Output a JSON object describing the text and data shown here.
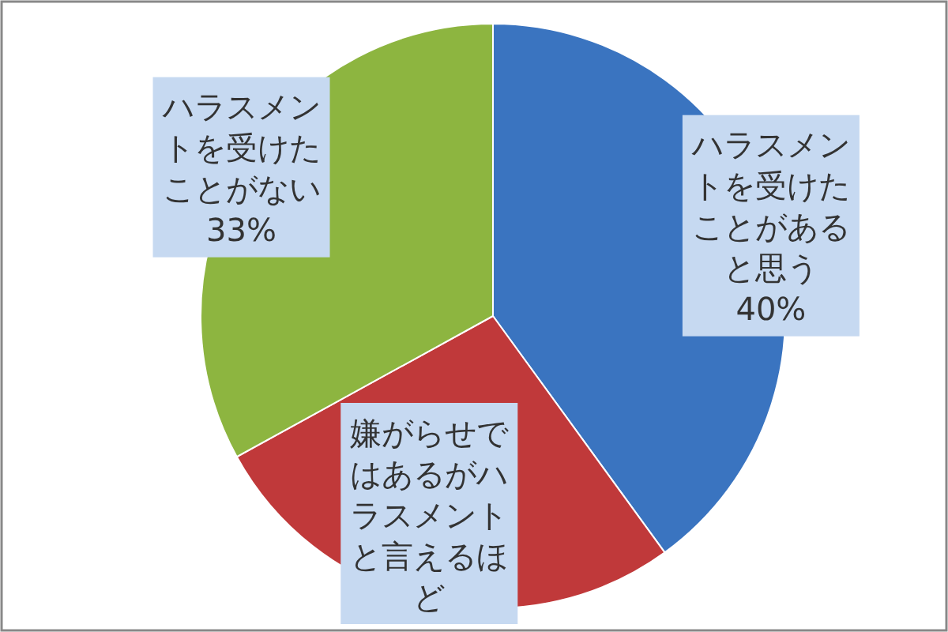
{
  "chart_data": {
    "type": "pie",
    "categories": [
      "ハラスメントを受けたことがあると思う",
      "嫌がらせではあるがハラスメントと言えるほど",
      "ハラスメントを受けたことがない"
    ],
    "values": [
      40,
      27,
      33
    ],
    "colors": [
      "#3a74c0",
      "#c0393a",
      "#8db540"
    ],
    "value_labels": [
      "40%",
      null,
      "33%"
    ]
  }
}
